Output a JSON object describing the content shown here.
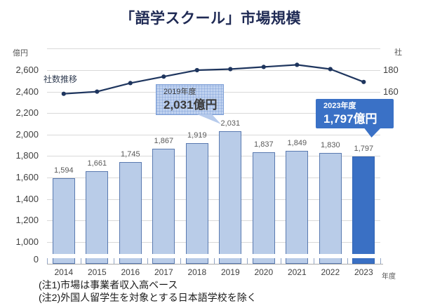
{
  "title": "「語学スクール」市場規模",
  "chart_data": {
    "type": "bar",
    "title": "「語学スクール」市場規模",
    "categories": [
      "2014",
      "2015",
      "2016",
      "2017",
      "2018",
      "2019",
      "2020",
      "2021",
      "2022",
      "2023"
    ],
    "series": [
      {
        "name": "市場規模",
        "type": "bar",
        "unit": "億円",
        "values": [
          1594,
          1661,
          1745,
          1867,
          1919,
          2031,
          1837,
          1849,
          1830,
          1797
        ],
        "labels": [
          "1,594",
          "1,661",
          "1,745",
          "1,867",
          "1,919",
          "2,031",
          "1,837",
          "1,849",
          "1,830",
          "1,797"
        ]
      },
      {
        "name": "社数推移",
        "type": "line",
        "unit": "社",
        "values": [
          158,
          160,
          168,
          174,
          180,
          181,
          183,
          185,
          181,
          169
        ]
      }
    ],
    "left_axis": {
      "unit": "億円",
      "axis_break": true,
      "ticks": [
        {
          "label": "2,600",
          "value": 2600
        },
        {
          "label": "2,400",
          "value": 2400
        },
        {
          "label": "2,200",
          "value": 2200
        },
        {
          "label": "2,000",
          "value": 2000
        },
        {
          "label": "1,800",
          "value": 1800
        },
        {
          "label": "1,600",
          "value": 1600
        },
        {
          "label": "1,400",
          "value": 1400
        },
        {
          "label": "1,200",
          "value": 1200
        },
        {
          "label": "1,000",
          "value": 1000
        },
        {
          "label": "0",
          "value": 0
        }
      ]
    },
    "right_axis": {
      "unit": "社",
      "ticks": [
        {
          "label": "180",
          "value": 180
        },
        {
          "label": "160",
          "value": 160
        }
      ]
    },
    "xlabel": "年度",
    "highlight_category": "2023"
  },
  "callouts": {
    "c2019": {
      "line1": "2019年度",
      "line2": "2,031億円"
    },
    "c2023": {
      "line1": "2023年度",
      "line2": "1,797億円"
    }
  },
  "notes": [
    "(注1)市場は事業者収入高ベース",
    "(注2)外国人留学生を対象とする日本語学校を除く"
  ],
  "colors": {
    "bar_fill": "#b9cce8",
    "bar_border": "#5a7ab0",
    "highlight_bar": "#3a70c4",
    "highlight_border": "#3264b4",
    "line": "#1e355e",
    "callout_blue": "#3a71c6",
    "title_text": "#1f2a54"
  }
}
